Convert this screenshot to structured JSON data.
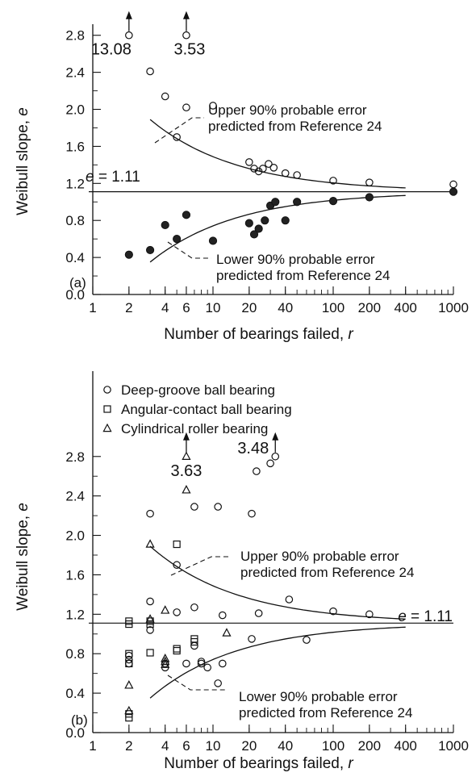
{
  "chart_data": [
    {
      "panel_label": "(a)",
      "type": "scatter",
      "xscale": "log",
      "xlabel_text": "Number of bearings failed, ",
      "xlabel_var": "r",
      "ylabel_text": "Weibull slope, ",
      "ylabel_var": "e",
      "xticks": [
        1,
        2,
        4,
        6,
        10,
        20,
        40,
        100,
        200,
        400,
        1000
      ],
      "xlim": [
        1,
        1000
      ],
      "yticks": [
        0.0,
        0.4,
        0.8,
        1.2,
        1.6,
        2.0,
        2.4,
        2.8
      ],
      "ylim": [
        0,
        2.85
      ],
      "reference_line": {
        "y": 1.11,
        "label_var": "e",
        "label_value": " = 1.11"
      },
      "series": [
        {
          "marker": "open-circle",
          "points": [
            [
              3,
              2.41
            ],
            [
              4,
              2.14
            ],
            [
              5,
              1.7
            ],
            [
              6,
              2.02
            ],
            [
              10,
              2.04
            ],
            [
              20,
              1.43
            ],
            [
              22,
              1.36
            ],
            [
              24,
              1.33
            ],
            [
              26,
              1.36
            ],
            [
              29,
              1.41
            ],
            [
              32,
              1.37
            ],
            [
              40,
              1.31
            ],
            [
              50,
              1.29
            ],
            [
              100,
              1.23
            ],
            [
              200,
              1.21
            ],
            [
              1000,
              1.19
            ]
          ]
        },
        {
          "marker": "filled-circle",
          "points": [
            [
              2,
              0.43
            ],
            [
              3,
              0.48
            ],
            [
              4,
              0.75
            ],
            [
              5,
              0.6
            ],
            [
              6,
              0.86
            ],
            [
              10,
              0.58
            ],
            [
              20,
              0.77
            ],
            [
              22,
              0.65
            ],
            [
              24,
              0.71
            ],
            [
              27,
              0.8
            ],
            [
              30,
              0.96
            ],
            [
              33,
              1.0
            ],
            [
              40,
              0.8
            ],
            [
              50,
              1.0
            ],
            [
              100,
              1.01
            ],
            [
              200,
              1.05
            ],
            [
              1000,
              1.11
            ]
          ]
        }
      ],
      "offscale": [
        {
          "x": 2,
          "y": 2.8,
          "label": "13.08"
        },
        {
          "x": 6,
          "y": 2.8,
          "label": "3.53"
        }
      ],
      "curves": {
        "x_range": [
          3,
          400
        ],
        "upper_start": 1.89,
        "lower_start": 0.35,
        "asymptote": 1.11,
        "decay": 0.6
      },
      "annotations": {
        "upper": [
          "Upper 90% probable error",
          "predicted from Reference 24"
        ],
        "lower": [
          "Lower 90% probable error",
          "predicted from Reference 24"
        ]
      }
    },
    {
      "panel_label": "(b)",
      "type": "scatter",
      "xscale": "log",
      "xlabel_text": "Number of bearings failed, ",
      "xlabel_var": "r",
      "ylabel_text": "Weibull slope, ",
      "ylabel_var": "e",
      "xticks": [
        1,
        2,
        4,
        6,
        10,
        20,
        40,
        100,
        200,
        400,
        1000
      ],
      "xlim": [
        1,
        1000
      ],
      "yticks": [
        0.0,
        0.4,
        0.8,
        1.2,
        1.6,
        2.0,
        2.4,
        2.8
      ],
      "ylim": [
        0,
        3.6
      ],
      "reference_line": {
        "y": 1.11,
        "label_var": "e",
        "label_value": " = 1.11"
      },
      "legend": [
        {
          "marker": "open-circle",
          "label": "Deep-groove ball bearing"
        },
        {
          "marker": "open-square",
          "label": "Angular-contact ball bearing"
        },
        {
          "marker": "open-triangle",
          "label": "Cylindrical roller bearing"
        }
      ],
      "series": [
        {
          "name": "Deep-groove ball bearing",
          "marker": "open-circle",
          "points": [
            [
              2,
              0.78
            ],
            [
              2,
              0.74
            ],
            [
              2,
              0.7
            ],
            [
              3,
              2.22
            ],
            [
              3,
              1.33
            ],
            [
              3,
              1.04
            ],
            [
              4,
              0.7
            ],
            [
              4,
              0.66
            ],
            [
              5,
              1.7
            ],
            [
              5,
              1.22
            ],
            [
              6,
              0.7
            ],
            [
              7,
              2.29
            ],
            [
              7,
              1.27
            ],
            [
              7,
              0.88
            ],
            [
              8,
              0.72
            ],
            [
              8,
              0.7
            ],
            [
              9,
              0.66
            ],
            [
              11,
              2.29
            ],
            [
              11,
              0.5
            ],
            [
              12,
              1.19
            ],
            [
              12,
              0.7
            ],
            [
              21,
              2.22
            ],
            [
              21,
              0.95
            ],
            [
              23,
              2.65
            ],
            [
              24,
              1.21
            ],
            [
              30,
              2.73
            ],
            [
              43,
              1.35
            ],
            [
              60,
              0.94
            ],
            [
              100,
              1.23
            ],
            [
              200,
              1.2
            ]
          ]
        },
        {
          "name": "Angular-contact ball bearing",
          "marker": "open-square",
          "points": [
            [
              2,
              1.13
            ],
            [
              2,
              1.1
            ],
            [
              2,
              0.8
            ],
            [
              2,
              0.7
            ],
            [
              2,
              0.19
            ],
            [
              2,
              0.15
            ],
            [
              3,
              1.13
            ],
            [
              3,
              1.1
            ],
            [
              3,
              0.81
            ],
            [
              5,
              1.91
            ],
            [
              5,
              0.85
            ],
            [
              5,
              0.83
            ],
            [
              7,
              0.95
            ],
            [
              7,
              0.92
            ]
          ]
        },
        {
          "name": "Cylindrical roller bearing",
          "marker": "open-triangle",
          "points": [
            [
              2,
              0.48
            ],
            [
              2,
              0.22
            ],
            [
              3,
              1.91
            ],
            [
              3,
              1.15
            ],
            [
              4,
              1.24
            ],
            [
              4,
              0.75
            ],
            [
              4,
              0.72
            ],
            [
              4,
              0.69
            ],
            [
              6,
              2.46
            ],
            [
              13,
              1.01
            ]
          ]
        }
      ],
      "offscale": [
        {
          "x": 6,
          "y": 2.8,
          "marker": "open-triangle",
          "label": "3.63"
        },
        {
          "x": 33,
          "y": 2.8,
          "marker": "open-circle",
          "label": "3.48"
        }
      ],
      "curves": {
        "x_range": [
          3,
          400
        ],
        "upper_start": 1.89,
        "lower_start": 0.35,
        "asymptote": 1.11,
        "decay": 0.6
      },
      "annotations": {
        "upper": [
          "Upper 90% probable error",
          "predicted from Reference 24"
        ],
        "lower": [
          "Lower 90% probable error",
          "predicted from Reference 24"
        ]
      }
    }
  ]
}
